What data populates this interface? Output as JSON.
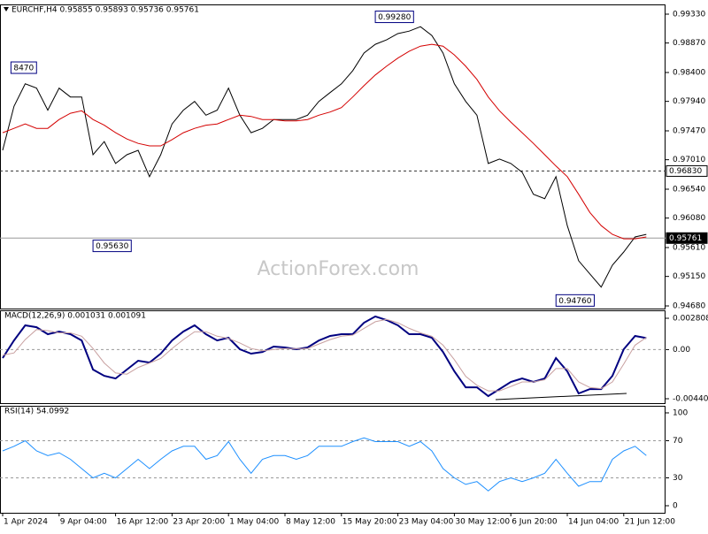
{
  "chart_data": [
    {
      "type": "line",
      "title": "EURCHF,H4  0.95855 0.95893 0.95736 0.95761",
      "watermark": "ActionForex.com",
      "categories": [
        "1 Apr 2024",
        null,
        null,
        null,
        null,
        "9 Apr 04:00",
        null,
        null,
        null,
        null,
        "16 Apr 12:00",
        null,
        null,
        null,
        null,
        "23 Apr 20:00",
        null,
        null,
        null,
        null,
        "1 May 04:00",
        null,
        null,
        null,
        null,
        "8 May 12:00",
        null,
        null,
        null,
        null,
        "15 May 20:00",
        null,
        null,
        null,
        null,
        "23 May 04:00",
        null,
        null,
        null,
        null,
        "30 May 12:00",
        null,
        null,
        null,
        null,
        "6 Jun 20:00",
        null,
        null,
        null,
        null,
        "14 Jun 04:00",
        null,
        null,
        null,
        null,
        "21 Jun 12:00",
        null,
        null
      ],
      "series": [
        {
          "color": "#000000",
          "values": [
            0.9716,
            0.9786,
            0.9822,
            0.9815,
            0.978,
            0.9815,
            0.9801,
            0.9801,
            0.9709,
            0.973,
            0.9695,
            0.9709,
            0.9716,
            0.9674,
            0.9709,
            0.9758,
            0.978,
            0.9794,
            0.9772,
            0.978,
            0.9815,
            0.9772,
            0.9744,
            0.9751,
            0.9765,
            0.9765,
            0.9765,
            0.9772,
            0.9794,
            0.9808,
            0.9822,
            0.9843,
            0.9871,
            0.9885,
            0.9892,
            0.9902,
            0.9906,
            0.9913,
            0.9899,
            0.9871,
            0.9822,
            0.9794,
            0.9772,
            0.9695,
            0.9702,
            0.9695,
            0.9681,
            0.9646,
            0.9639,
            0.9674,
            0.9596,
            0.954,
            0.9519,
            0.9498,
            0.9533,
            0.9554,
            0.9578,
            0.9582
          ]
        },
        {
          "color": "#d40000",
          "values": [
            0.9744,
            0.9751,
            0.9758,
            0.9751,
            0.9751,
            0.9765,
            0.9775,
            0.9779,
            0.9765,
            0.9756,
            0.9744,
            0.9734,
            0.9727,
            0.9723,
            0.9723,
            0.9733,
            0.9744,
            0.9751,
            0.9756,
            0.9758,
            0.9765,
            0.9772,
            0.977,
            0.9765,
            0.9765,
            0.9763,
            0.9763,
            0.9765,
            0.9772,
            0.9777,
            0.9784,
            0.9801,
            0.9819,
            0.9836,
            0.985,
            0.9863,
            0.9874,
            0.9882,
            0.9885,
            0.9882,
            0.9868,
            0.985,
            0.9829,
            0.9801,
            0.9779,
            0.9761,
            0.9744,
            0.9727,
            0.9709,
            0.9691,
            0.9674,
            0.9646,
            0.9617,
            0.9596,
            0.9582,
            0.9575,
            0.9575,
            0.9578
          ]
        }
      ],
      "ylim": [
        0.94638,
        0.99485
      ],
      "yticks": [
        {
          "value": 0.9933,
          "label": "0.99330"
        },
        {
          "value": 0.9887,
          "label": "0.98870"
        },
        {
          "value": 0.984,
          "label": "0.98400"
        },
        {
          "value": 0.9794,
          "label": "0.97940"
        },
        {
          "value": 0.9747,
          "label": "0.97470"
        },
        {
          "value": 0.9701,
          "label": "0.97010"
        },
        {
          "value": 0.9654,
          "label": "0.96540"
        },
        {
          "value": 0.9608,
          "label": "0.96080"
        },
        {
          "value": 0.9561,
          "label": "0.95610"
        },
        {
          "value": 0.9515,
          "label": "0.95150"
        },
        {
          "value": 0.9468,
          "label": "0.94680"
        }
      ],
      "hlines": [
        {
          "value": 0.9683,
          "label": "0.96830",
          "style": "dashed"
        },
        {
          "value": 0.95761,
          "label": "0.95761",
          "style": "solid"
        }
      ],
      "annotations": [
        {
          "value": 0.9928,
          "label": "0.99280",
          "at": 33,
          "align": "start"
        },
        {
          "value": 0.9847,
          "label": "8470",
          "at": 3,
          "align": "end"
        },
        {
          "value": 0.9563,
          "label": "0.95630",
          "at": 8,
          "align": "start"
        },
        {
          "value": 0.9476,
          "label": "0.94760",
          "at": 49,
          "align": "start"
        }
      ]
    },
    {
      "type": "line",
      "title": "MACD(12,26,9) 0.001031 0.001091",
      "series": [
        {
          "color": "#000080",
          "values": [
            -0.00076,
            0.00082,
            0.00217,
            0.00201,
            0.00138,
            0.00162,
            0.00138,
            0.00082,
            -0.00179,
            -0.00235,
            -0.00259,
            -0.00179,
            -0.001,
            -0.00116,
            -0.00036,
            0.00082,
            0.00162,
            0.00217,
            0.00138,
            0.00082,
            0.00106,
            3e-05,
            -0.00036,
            -0.00021,
            0.00027,
            0.00019,
            3e-05,
            0.00019,
            0.00082,
            0.00122,
            0.00138,
            0.00138,
            0.00241,
            0.00297,
            0.00265,
            0.00217,
            0.00138,
            0.00138,
            0.00106,
            -0.00021,
            -0.00195,
            -0.00338,
            -0.00338,
            -0.00417,
            -0.00354,
            -0.0029,
            -0.00259,
            -0.0029,
            -0.00259,
            -0.00076,
            -0.00195,
            -0.00393,
            -0.00354,
            -0.00354,
            -0.00235,
            3e-05,
            0.00122,
            0.00103
          ]
        },
        {
          "color": "#c8a0a0",
          "values": [
            -0.0005,
            -0.0003,
            0.0009,
            0.0018,
            0.0017,
            0.0015,
            0.0015,
            0.0012,
            0.0001,
            -0.0012,
            -0.0021,
            -0.0022,
            -0.0016,
            -0.0012,
            -0.0008,
            0.0001,
            0.0009,
            0.0016,
            0.0016,
            0.0012,
            0.001,
            0.0006,
            0.0001,
            -0.0001,
            0.0,
            0.0001,
            0.0001,
            0.0001,
            0.0005,
            0.0009,
            0.0012,
            0.0013,
            0.0019,
            0.0025,
            0.0027,
            0.0024,
            0.0019,
            0.0015,
            0.0012,
            0.0004,
            -0.0009,
            -0.0024,
            -0.0032,
            -0.0037,
            -0.0037,
            -0.0033,
            -0.0029,
            -0.0029,
            -0.0027,
            -0.0017,
            -0.0017,
            -0.0029,
            -0.0034,
            -0.0035,
            -0.0029,
            -0.0013,
            0.0004,
            0.00109
          ]
        }
      ],
      "ylim": [
        -0.0048,
        0.00352
      ],
      "yticks": [
        0.002808,
        {
          "value": 0,
          "label": "0.00"
        },
        -0.004404
      ],
      "levels": [
        0
      ]
    },
    {
      "type": "line",
      "title": "RSI(14) 54.0992",
      "series": [
        {
          "color": "#1e90ff",
          "values": [
            59,
            64,
            70,
            59,
            54,
            57,
            50,
            40,
            30,
            35,
            30,
            40,
            50,
            40,
            50,
            59,
            64,
            64,
            50,
            54,
            69,
            50,
            35,
            50,
            54,
            54,
            50,
            54,
            64,
            64,
            64,
            69,
            73,
            69,
            69,
            69,
            64,
            69,
            59,
            40,
            30,
            23,
            26,
            16,
            26,
            30,
            26,
            30,
            35,
            50,
            35,
            21,
            26,
            26,
            50,
            59,
            64,
            54.1
          ]
        }
      ],
      "ylim": [
        -7.6,
        107.6
      ],
      "yticks": [
        100,
        70,
        30,
        0
      ],
      "levels": [
        70,
        30
      ]
    }
  ]
}
